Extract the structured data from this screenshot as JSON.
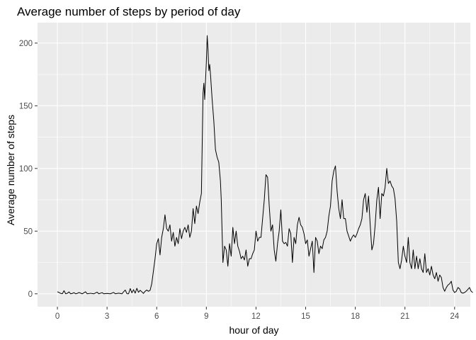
{
  "chart_data": {
    "type": "line",
    "title": "Average number of steps by period of day",
    "xlabel": "hour of day",
    "ylabel": "Average number of steps",
    "xlim": [
      -1.2,
      24.95
    ],
    "ylim": [
      -10.3,
      216.3
    ],
    "x_ticks": [
      0,
      3,
      6,
      9,
      12,
      15,
      18,
      21,
      24
    ],
    "y_ticks": [
      0,
      50,
      100,
      150,
      200
    ],
    "x_tick_labels": [
      "0",
      "3",
      "6",
      "9",
      "12",
      "15",
      "18",
      "21",
      "24"
    ],
    "y_tick_labels": [
      "0",
      "50",
      "100",
      "150",
      "200"
    ],
    "grid": true,
    "legend": "none",
    "colors": {
      "panel": "#ebebeb",
      "grid": "#ffffff",
      "line": "#000000"
    },
    "series": [
      {
        "points": [
          [
            0.0,
            1.7
          ],
          [
            0.2,
            0.3
          ],
          [
            0.3,
            0.1
          ],
          [
            0.4,
            2.5
          ],
          [
            0.5,
            0.0
          ],
          [
            0.6,
            0.4
          ],
          [
            0.7,
            1.5
          ],
          [
            0.8,
            0.0
          ],
          [
            0.9,
            0.3
          ],
          [
            1.0,
            0.9
          ],
          [
            1.1,
            0.0
          ],
          [
            1.2,
            0.3
          ],
          [
            1.3,
            1.0
          ],
          [
            1.5,
            0.0
          ],
          [
            1.7,
            1.6
          ],
          [
            1.8,
            0.0
          ],
          [
            2.0,
            0.4
          ],
          [
            2.2,
            0.0
          ],
          [
            2.4,
            1.3
          ],
          [
            2.5,
            0.0
          ],
          [
            2.7,
            0.9
          ],
          [
            2.8,
            0.0
          ],
          [
            3.0,
            0.3
          ],
          [
            3.2,
            0.0
          ],
          [
            3.4,
            1.1
          ],
          [
            3.5,
            0.0
          ],
          [
            3.7,
            0.5
          ],
          [
            3.9,
            0.0
          ],
          [
            4.0,
            1.6
          ],
          [
            4.1,
            3.0
          ],
          [
            4.2,
            0.1
          ],
          [
            4.3,
            0.0
          ],
          [
            4.4,
            4.2
          ],
          [
            4.5,
            0.8
          ],
          [
            4.6,
            3.3
          ],
          [
            4.7,
            0.5
          ],
          [
            4.8,
            4.4
          ],
          [
            4.9,
            1.2
          ],
          [
            5.0,
            2.8
          ],
          [
            5.1,
            1.6
          ],
          [
            5.2,
            0.3
          ],
          [
            5.3,
            2.0
          ],
          [
            5.4,
            3.0
          ],
          [
            5.5,
            2.0
          ],
          [
            5.6,
            2.8
          ],
          [
            5.7,
            8.0
          ],
          [
            5.8,
            18.0
          ],
          [
            5.9,
            28.0
          ],
          [
            6.0,
            40.0
          ],
          [
            6.1,
            44.0
          ],
          [
            6.2,
            31.0
          ],
          [
            6.3,
            45.0
          ],
          [
            6.4,
            52.0
          ],
          [
            6.5,
            63.0
          ],
          [
            6.6,
            52.0
          ],
          [
            6.7,
            50.0
          ],
          [
            6.8,
            55.0
          ],
          [
            6.9,
            42.0
          ],
          [
            7.0,
            49.0
          ],
          [
            7.1,
            38.0
          ],
          [
            7.2,
            45.0
          ],
          [
            7.3,
            40.0
          ],
          [
            7.4,
            52.0
          ],
          [
            7.5,
            44.0
          ],
          [
            7.6,
            50.0
          ],
          [
            7.7,
            53.0
          ],
          [
            7.8,
            49.0
          ],
          [
            7.9,
            55.0
          ],
          [
            8.0,
            45.0
          ],
          [
            8.1,
            50.0
          ],
          [
            8.2,
            68.0
          ],
          [
            8.3,
            56.0
          ],
          [
            8.4,
            70.0
          ],
          [
            8.5,
            64.0
          ],
          [
            8.6,
            73.0
          ],
          [
            8.7,
            80.0
          ],
          [
            8.8,
            160.0
          ],
          [
            8.85,
            168.0
          ],
          [
            8.9,
            155.0
          ],
          [
            8.95,
            170.0
          ],
          [
            9.0,
            185.0
          ],
          [
            9.05,
            206.0
          ],
          [
            9.1,
            195.0
          ],
          [
            9.15,
            178.0
          ],
          [
            9.2,
            183.0
          ],
          [
            9.25,
            175.0
          ],
          [
            9.35,
            155.0
          ],
          [
            9.45,
            138.0
          ],
          [
            9.55,
            115.0
          ],
          [
            9.65,
            109.0
          ],
          [
            9.75,
            105.0
          ],
          [
            9.85,
            90.0
          ],
          [
            9.9,
            75.0
          ],
          [
            9.95,
            50.0
          ],
          [
            10.0,
            25.0
          ],
          [
            10.1,
            38.0
          ],
          [
            10.2,
            35.0
          ],
          [
            10.3,
            22.0
          ],
          [
            10.4,
            40.0
          ],
          [
            10.5,
            30.0
          ],
          [
            10.6,
            53.0
          ],
          [
            10.7,
            40.0
          ],
          [
            10.8,
            50.0
          ],
          [
            10.9,
            38.0
          ],
          [
            11.0,
            34.0
          ],
          [
            11.1,
            28.0
          ],
          [
            11.2,
            30.0
          ],
          [
            11.3,
            27.0
          ],
          [
            11.4,
            35.0
          ],
          [
            11.5,
            22.0
          ],
          [
            11.6,
            28.0
          ],
          [
            11.7,
            28.0
          ],
          [
            11.8,
            32.0
          ],
          [
            11.9,
            35.0
          ],
          [
            12.0,
            50.0
          ],
          [
            12.1,
            42.0
          ],
          [
            12.2,
            45.0
          ],
          [
            12.3,
            45.0
          ],
          [
            12.4,
            60.0
          ],
          [
            12.5,
            75.0
          ],
          [
            12.6,
            95.0
          ],
          [
            12.7,
            93.0
          ],
          [
            12.8,
            70.0
          ],
          [
            12.9,
            50.0
          ],
          [
            13.0,
            55.0
          ],
          [
            13.1,
            35.0
          ],
          [
            13.2,
            26.0
          ],
          [
            13.3,
            40.0
          ],
          [
            13.4,
            50.0
          ],
          [
            13.5,
            67.0
          ],
          [
            13.6,
            42.0
          ],
          [
            13.7,
            40.0
          ],
          [
            13.8,
            41.0
          ],
          [
            13.9,
            38.0
          ],
          [
            14.0,
            52.0
          ],
          [
            14.1,
            48.0
          ],
          [
            14.2,
            25.0
          ],
          [
            14.3,
            45.0
          ],
          [
            14.4,
            40.0
          ],
          [
            14.5,
            55.0
          ],
          [
            14.6,
            61.0
          ],
          [
            14.7,
            55.0
          ],
          [
            14.8,
            53.0
          ],
          [
            14.9,
            48.0
          ],
          [
            15.0,
            40.0
          ],
          [
            15.1,
            43.0
          ],
          [
            15.2,
            30.0
          ],
          [
            15.3,
            36.0
          ],
          [
            15.4,
            42.0
          ],
          [
            15.5,
            17.0
          ],
          [
            15.6,
            45.0
          ],
          [
            15.7,
            42.0
          ],
          [
            15.8,
            32.0
          ],
          [
            15.9,
            38.0
          ],
          [
            16.0,
            36.0
          ],
          [
            16.1,
            43.0
          ],
          [
            16.2,
            45.0
          ],
          [
            16.3,
            50.0
          ],
          [
            16.4,
            62.0
          ],
          [
            16.5,
            70.0
          ],
          [
            16.6,
            90.0
          ],
          [
            16.7,
            98.0
          ],
          [
            16.8,
            102.0
          ],
          [
            16.9,
            82.0
          ],
          [
            17.0,
            68.0
          ],
          [
            17.1,
            60.0
          ],
          [
            17.2,
            75.0
          ],
          [
            17.3,
            60.0
          ],
          [
            17.4,
            60.0
          ],
          [
            17.5,
            50.0
          ],
          [
            17.6,
            46.0
          ],
          [
            17.7,
            42.0
          ],
          [
            17.8,
            45.0
          ],
          [
            17.9,
            47.0
          ],
          [
            18.0,
            45.0
          ],
          [
            18.1,
            48.0
          ],
          [
            18.2,
            52.0
          ],
          [
            18.3,
            55.0
          ],
          [
            18.4,
            60.0
          ],
          [
            18.5,
            75.0
          ],
          [
            18.6,
            80.0
          ],
          [
            18.7,
            65.0
          ],
          [
            18.8,
            78.0
          ],
          [
            18.9,
            55.0
          ],
          [
            19.0,
            35.0
          ],
          [
            19.1,
            40.0
          ],
          [
            19.2,
            55.0
          ],
          [
            19.3,
            75.0
          ],
          [
            19.4,
            85.0
          ],
          [
            19.5,
            60.0
          ],
          [
            19.6,
            80.0
          ],
          [
            19.7,
            78.0
          ],
          [
            19.8,
            85.0
          ],
          [
            19.9,
            100.0
          ],
          [
            20.0,
            88.0
          ],
          [
            20.1,
            90.0
          ],
          [
            20.2,
            86.0
          ],
          [
            20.3,
            84.0
          ],
          [
            20.4,
            76.0
          ],
          [
            20.5,
            58.0
          ],
          [
            20.6,
            25.0
          ],
          [
            20.7,
            20.0
          ],
          [
            20.8,
            27.0
          ],
          [
            20.9,
            38.0
          ],
          [
            21.0,
            30.0
          ],
          [
            21.1,
            25.0
          ],
          [
            21.2,
            45.0
          ],
          [
            21.3,
            25.0
          ],
          [
            21.4,
            20.0
          ],
          [
            21.5,
            35.0
          ],
          [
            21.6,
            20.0
          ],
          [
            21.7,
            30.0
          ],
          [
            21.8,
            20.0
          ],
          [
            21.9,
            28.0
          ],
          [
            22.0,
            20.0
          ],
          [
            22.1,
            17.0
          ],
          [
            22.2,
            32.0
          ],
          [
            22.3,
            17.0
          ],
          [
            22.4,
            20.0
          ],
          [
            22.5,
            15.0
          ],
          [
            22.6,
            22.0
          ],
          [
            22.7,
            15.0
          ],
          [
            22.8,
            12.0
          ],
          [
            22.9,
            17.0
          ],
          [
            23.0,
            10.0
          ],
          [
            23.1,
            15.0
          ],
          [
            23.2,
            13.0
          ],
          [
            23.3,
            5.0
          ],
          [
            23.4,
            2.0
          ],
          [
            23.5,
            5.0
          ],
          [
            23.6,
            7.0
          ],
          [
            23.7,
            8.0
          ],
          [
            23.8,
            10.0
          ],
          [
            23.9,
            3.0
          ],
          [
            24.0,
            1.0
          ],
          [
            24.1,
            2.0
          ],
          [
            24.2,
            5.0
          ],
          [
            24.3,
            4.0
          ],
          [
            24.4,
            1.0
          ],
          [
            24.5,
            0.5
          ],
          [
            24.6,
            1.0
          ],
          [
            24.7,
            2.0
          ],
          [
            24.8,
            3.5
          ],
          [
            24.9,
            5.0
          ],
          [
            25.0,
            2.0
          ],
          [
            25.1,
            1.0
          ]
        ]
      }
    ]
  }
}
